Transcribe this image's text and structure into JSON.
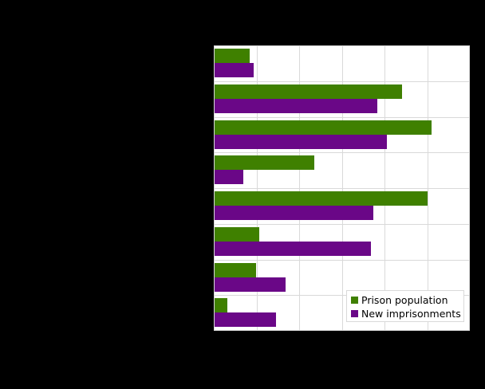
{
  "chart_data": {
    "type": "bar",
    "orientation": "horizontal",
    "title": "",
    "xlabel": "",
    "ylabel": "",
    "categories": [
      "",
      "",
      "",
      "",
      "",
      "",
      "",
      ""
    ],
    "value_units": "gridline intervals (axis tick labels not visible)",
    "xlim": [
      0,
      6
    ],
    "grid": true,
    "legend_position": "lower right, inside plot",
    "series": [
      {
        "name": "Prison population",
        "color": "#3f8000",
        "values": [
          0.84,
          4.42,
          5.1,
          2.35,
          5.0,
          1.07,
          0.99,
          0.32
        ]
      },
      {
        "name": "New imprisonments",
        "color": "#6a0787",
        "values": [
          0.93,
          3.84,
          4.05,
          0.7,
          3.73,
          3.68,
          1.68,
          1.46
        ]
      }
    ]
  },
  "legend": {
    "items": [
      {
        "label": "Prison population",
        "color": "#3f8000"
      },
      {
        "label": "New imprisonments",
        "color": "#6a0787"
      }
    ]
  },
  "colors": {
    "background": "#000000",
    "plot_background": "#ffffff",
    "gridline": "#d9d9d9"
  }
}
